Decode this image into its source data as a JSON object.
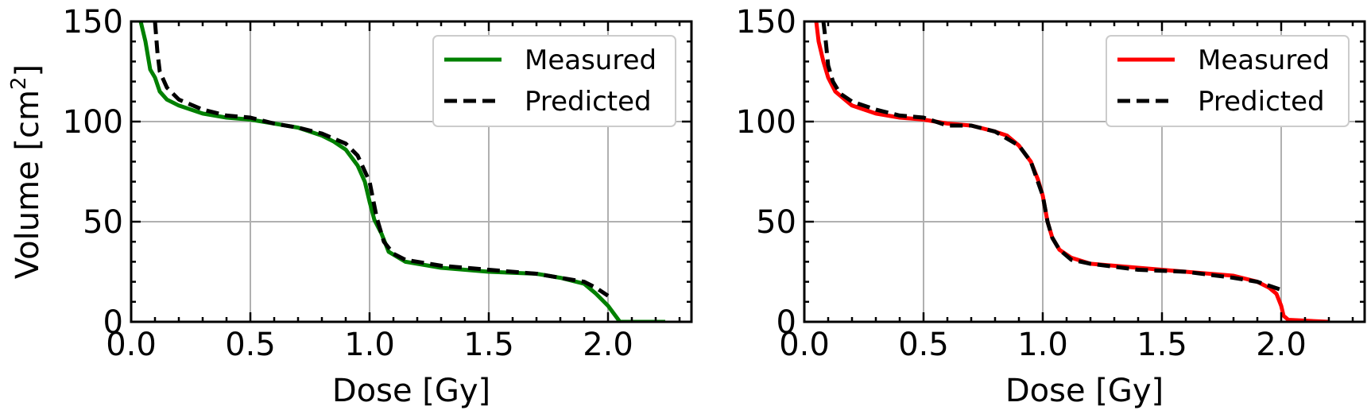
{
  "chart_data": [
    {
      "type": "line",
      "title": "",
      "xlabel": "Dose [Gy]",
      "ylabel": "Volume [cm",
      "ylabel_sup": "2",
      "ylabel_tail": "]",
      "xlim": [
        0.0,
        2.35
      ],
      "ylim": [
        0,
        150
      ],
      "xticks": [
        "0.0",
        "0.5",
        "1.0",
        "1.5",
        "2.0"
      ],
      "yticks": [
        "0",
        "50",
        "100",
        "150"
      ],
      "grid": true,
      "legend_position": "top-right",
      "series": [
        {
          "name": "Measured",
          "color": "#008000",
          "style": "solid",
          "x": [
            0.04,
            0.06,
            0.08,
            0.1,
            0.12,
            0.15,
            0.2,
            0.3,
            0.4,
            0.5,
            0.6,
            0.7,
            0.8,
            0.85,
            0.9,
            0.95,
            0.98,
            1.0,
            1.02,
            1.05,
            1.08,
            1.15,
            1.3,
            1.5,
            1.7,
            1.8,
            1.9,
            1.95,
            2.0,
            2.05,
            2.1,
            2.24
          ],
          "y": [
            150,
            140,
            126,
            122,
            115,
            111,
            108,
            104,
            102,
            101,
            99,
            97,
            93,
            90,
            86,
            78,
            70,
            60,
            51,
            44,
            35,
            30,
            27,
            25,
            24,
            22,
            19,
            14,
            8,
            0,
            0,
            0
          ]
        },
        {
          "name": "Predicted",
          "color": "#000000",
          "style": "dashed",
          "x": [
            0.1,
            0.11,
            0.12,
            0.15,
            0.2,
            0.3,
            0.4,
            0.5,
            0.6,
            0.7,
            0.8,
            0.9,
            0.95,
            1.0,
            1.03,
            1.06,
            1.1,
            1.15,
            1.3,
            1.5,
            1.7,
            1.8,
            1.9,
            1.95,
            2.0
          ],
          "y": [
            150,
            135,
            125,
            117,
            111,
            106,
            103,
            102,
            99,
            97,
            94,
            89,
            83,
            70,
            52,
            40,
            34,
            31,
            28,
            26,
            24,
            22,
            20,
            17,
            13
          ]
        }
      ]
    },
    {
      "type": "line",
      "title": "",
      "xlabel": "Dose [Gy]",
      "ylabel": "",
      "xlim": [
        0.0,
        2.35
      ],
      "ylim": [
        0,
        150
      ],
      "xticks": [
        "0.0",
        "0.5",
        "1.0",
        "1.5",
        "2.0"
      ],
      "yticks": [
        "0",
        "50",
        "100",
        "150"
      ],
      "grid": true,
      "legend_position": "top-right",
      "series": [
        {
          "name": "Measured",
          "color": "#ff0000",
          "style": "solid",
          "x": [
            0.05,
            0.06,
            0.08,
            0.1,
            0.13,
            0.17,
            0.2,
            0.3,
            0.4,
            0.5,
            0.6,
            0.7,
            0.8,
            0.85,
            0.9,
            0.95,
            0.98,
            1.0,
            1.02,
            1.04,
            1.07,
            1.12,
            1.2,
            1.4,
            1.6,
            1.8,
            1.9,
            1.95,
            1.98,
            2.0,
            2.01,
            2.03,
            2.2
          ],
          "y": [
            150,
            140,
            130,
            122,
            115,
            111,
            108,
            104,
            102,
            101,
            99,
            98,
            95,
            93,
            88,
            80,
            71,
            63,
            50,
            42,
            36,
            32,
            29,
            27,
            25,
            23,
            20,
            17,
            14,
            8,
            3,
            1,
            0
          ]
        },
        {
          "name": "Predicted",
          "color": "#000000",
          "style": "dashed",
          "x": [
            0.08,
            0.09,
            0.1,
            0.12,
            0.15,
            0.2,
            0.3,
            0.4,
            0.5,
            0.6,
            0.7,
            0.8,
            0.9,
            0.95,
            1.0,
            1.02,
            1.04,
            1.07,
            1.12,
            1.2,
            1.4,
            1.6,
            1.8,
            1.9,
            1.95,
            2.0
          ],
          "y": [
            150,
            140,
            128,
            120,
            114,
            110,
            106,
            103,
            102,
            98,
            98,
            95,
            88,
            80,
            63,
            50,
            42,
            36,
            31,
            29,
            26,
            25,
            22,
            20,
            18,
            16
          ]
        }
      ]
    }
  ]
}
